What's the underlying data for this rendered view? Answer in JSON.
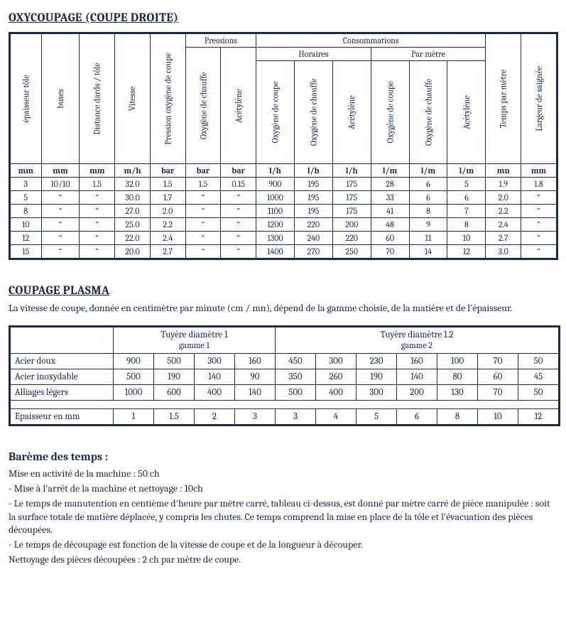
{
  "oxy": {
    "title": "OXYCOUPAGE (COUPE DROITE)",
    "group_pressions": "Pressions",
    "group_consommations": "Consommations",
    "group_horaires": "Horaires",
    "group_parmetre": "Par mètre",
    "cols": {
      "c0": "épaisseur tôle",
      "c1": "buses",
      "c2": "Distance dards / tôle",
      "c3": "Vitesse",
      "c4": "Pression oxygène de coupe",
      "c5": "Oxygène de chauffe",
      "c6": "Acétylène",
      "c7": "Oxygène de coupe",
      "c8": "Oxygène de chauffe",
      "c9": "Acétylène",
      "c10": "Oxygène de coupe",
      "c11": "Oxygène de chauffe",
      "c12": "Acétylène",
      "c13": "Temps par mètre",
      "c14": "Largeur de saignée"
    },
    "units": {
      "u0": "mm",
      "u1": "mm",
      "u2": "mm",
      "u3": "m/h",
      "u4": "bar",
      "u5": "bar",
      "u6": "bar",
      "u7": "l/h",
      "u8": "l/h",
      "u9": "l/h",
      "u10": "l/m",
      "u11": "l/m",
      "u12": "l/m",
      "u13": "mn",
      "u14": "mm"
    },
    "rows": [
      [
        "3",
        "10/10",
        "1.5",
        "32.0",
        "1.5",
        "1.5",
        "0.15",
        "900",
        "195",
        "175",
        "28",
        "6",
        "5",
        "1.9",
        "1.8"
      ],
      [
        "5",
        "“",
        "“",
        "30.0",
        "1.7",
        "“",
        "“",
        "1000",
        "195",
        "175",
        "33",
        "6",
        "6",
        "2.0",
        "“"
      ],
      [
        "8",
        "“",
        "“",
        "27.0",
        "2.0",
        "“",
        "“",
        "1100",
        "195",
        "175",
        "41",
        "8",
        "7",
        "2.2",
        "“"
      ],
      [
        "10",
        "“",
        "“",
        "25.0",
        "2.2",
        "“",
        "“",
        "1200",
        "220",
        "200",
        "48",
        "9",
        "8",
        "2.4",
        "“"
      ],
      [
        "12",
        "“",
        "“",
        "22.0",
        "2.4",
        "“",
        "“",
        "1300",
        "240",
        "220",
        "60",
        "11",
        "10",
        "2.7",
        "“"
      ],
      [
        "15",
        "“",
        "“",
        "20.0",
        "2.7",
        "“",
        "“",
        "1400",
        "270",
        "250",
        "70",
        "14",
        "12",
        "3.0",
        "“"
      ]
    ]
  },
  "plasma": {
    "title": "COUPAGE PLASMA",
    "intro": "La vitesse de coupe, donnée en centimètre par minute (cm / mn), dépend de la gamme choisie, de la matière et de l'épaisseur.",
    "tuy1_l1": "Tuyère diamètre 1",
    "tuy1_l2": "gamme 1",
    "tuy2_l1": "Tuyère diamètre 1.2",
    "tuy2_l2": "gamme 2",
    "row_labels": {
      "r0": "Acier doux",
      "r1": "Acier inoxydable",
      "r2": "Alliages légers",
      "r3": "Epaisseur en mm"
    },
    "rows": [
      [
        "900",
        "500",
        "300",
        "160",
        "450",
        "300",
        "230",
        "160",
        "100",
        "70",
        "50"
      ],
      [
        "500",
        "190",
        "140",
        "90",
        "350",
        "260",
        "190",
        "140",
        "80",
        "60",
        "45"
      ],
      [
        "1000",
        "600",
        "400",
        "140",
        "500",
        "400",
        "300",
        "200",
        "130",
        "70",
        "50"
      ]
    ],
    "epaisseur": [
      "1",
      "1.5",
      "2",
      "3",
      "3",
      "4",
      "5",
      "6",
      "8",
      "10",
      "12"
    ]
  },
  "bareme": {
    "title": "Barème des temps :",
    "l0": "Mise en activité de la machine : 50 ch",
    "l1": "-  Mise à l'arrêt de la machine et nettoyage : 10ch",
    "l2": "-  Le temps de manutention en centième d'heure par mètre carré, tableau ci-dessus, est donné par mètre carré de pièce manipulée : soit la surface totale de matière déplacée, y compris les chutes. Ce temps comprend la mise en place de la tôle et l'évacuation des pièces découpées.",
    "l3": "-  Le temps de découpage est fonction de la vitesse de coupe et de la longueur à découper.",
    "l4": "Nettoyage des pièces découpées : 2 ch par mètre de coupe."
  }
}
